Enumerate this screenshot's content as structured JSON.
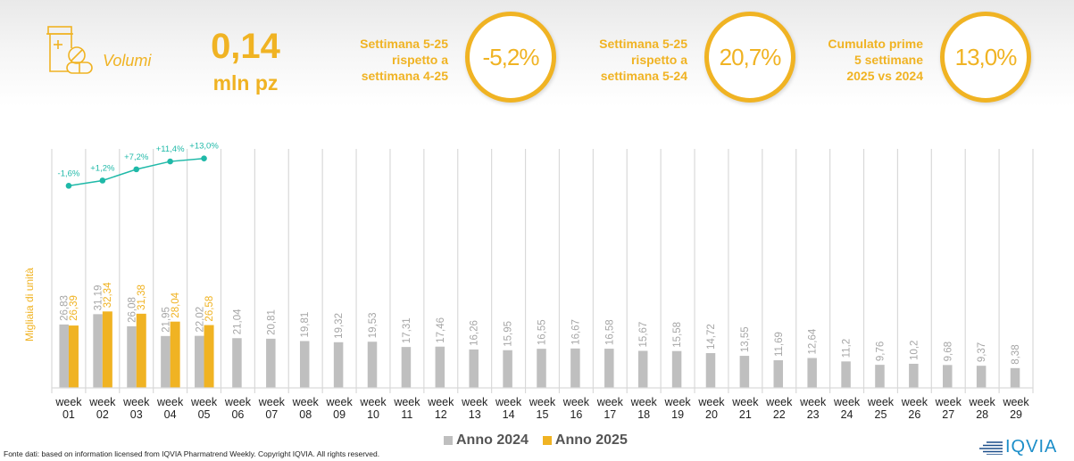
{
  "kpi": {
    "icon": "pill-bottle-icon",
    "label": "Volumi",
    "value": "0,14",
    "unit": "mln pz"
  },
  "comparisons": [
    {
      "text_lines": [
        "Settimana 5-25",
        "rispetto a",
        "settimana 4-25"
      ],
      "value": "-5,2%"
    },
    {
      "text_lines": [
        "Settimana 5-25",
        "rispetto a",
        "settimana 5-24"
      ],
      "value": "20,7%"
    },
    {
      "text_lines": [
        "Cumulato prime",
        "5 settimane",
        "2025 vs 2024"
      ],
      "value": "13,0%"
    }
  ],
  "colors": {
    "accent": "#f0b323",
    "series_2024": "#bfbfbf",
    "series_2025": "#f0b323",
    "growth_line": "#1fb9a8",
    "grid": "#d9d9d9",
    "label_2024": "#a6a6a6"
  },
  "chart_data": {
    "type": "bar",
    "title": "",
    "xlabel": "",
    "ylabel": "Migliaia di unità",
    "categories": [
      "week 01",
      "week 02",
      "week 03",
      "week 04",
      "week 05",
      "week 06",
      "week 07",
      "week 08",
      "week 09",
      "week 10",
      "week 11",
      "week 12",
      "week 13",
      "week 14",
      "week 15",
      "week 16",
      "week 17",
      "week 18",
      "week 19",
      "week 20",
      "week 21",
      "week 22",
      "week 23",
      "week 24",
      "week 25",
      "week 26",
      "week 27",
      "week 28",
      "week 29"
    ],
    "category_lines": [
      [
        "week",
        "01"
      ],
      [
        "week",
        "02"
      ],
      [
        "week",
        "03"
      ],
      [
        "week",
        "04"
      ],
      [
        "week",
        "05"
      ],
      [
        "week",
        "06"
      ],
      [
        "week",
        "07"
      ],
      [
        "week",
        "08"
      ],
      [
        "week",
        "09"
      ],
      [
        "week",
        "10"
      ],
      [
        "week",
        "11"
      ],
      [
        "week",
        "12"
      ],
      [
        "week",
        "13"
      ],
      [
        "week",
        "14"
      ],
      [
        "week",
        "15"
      ],
      [
        "week",
        "16"
      ],
      [
        "week",
        "17"
      ],
      [
        "week",
        "18"
      ],
      [
        "week",
        "19"
      ],
      [
        "week",
        "20"
      ],
      [
        "week",
        "21"
      ],
      [
        "week",
        "22"
      ],
      [
        "week",
        "23"
      ],
      [
        "week",
        "24"
      ],
      [
        "week",
        "25"
      ],
      [
        "week",
        "26"
      ],
      [
        "week",
        "27"
      ],
      [
        "week",
        "28"
      ],
      [
        "week",
        "29"
      ]
    ],
    "series": [
      {
        "name": "Anno 2024",
        "values": [
          26.83,
          31.19,
          26.08,
          21.95,
          22.02,
          21.04,
          20.81,
          19.81,
          19.32,
          19.53,
          17.31,
          17.46,
          16.26,
          15.95,
          16.55,
          16.67,
          16.58,
          15.67,
          15.58,
          14.72,
          13.55,
          11.69,
          12.64,
          11.2,
          9.76,
          10.2,
          9.68,
          9.37,
          8.38
        ],
        "labels": [
          "26,83",
          "31,19",
          "26,08",
          "21,95",
          "22,02",
          "21,04",
          "20,81",
          "19,81",
          "19,32",
          "19,53",
          "17,31",
          "17,46",
          "16,26",
          "15,95",
          "16,55",
          "16,67",
          "16,58",
          "15,67",
          "15,58",
          "14,72",
          "13,55",
          "11,69",
          "12,64",
          "11,2",
          "9,76",
          "10,2",
          "9,68",
          "9,37",
          "8,38"
        ]
      },
      {
        "name": "Anno 2025",
        "values": [
          26.39,
          32.34,
          31.38,
          28.04,
          26.58
        ],
        "labels": [
          "26,39",
          "32,34",
          "31,38",
          "28,04",
          "26,58"
        ]
      }
    ],
    "cumulative_growth": {
      "name": "Cumulative growth 2025 vs 2024",
      "values": [
        -1.6,
        1.2,
        7.2,
        11.4,
        13.0
      ],
      "labels": [
        "-1,6%",
        "+1,2%",
        "+7,2%",
        "+11,4%",
        "+13,0%"
      ]
    },
    "ylim": [
      0,
      60
    ],
    "grid": "vertical category separators",
    "legend": "bottom-center"
  },
  "legend": {
    "items": [
      {
        "label": "Anno 2024",
        "color": "#bfbfbf"
      },
      {
        "label": "Anno 2025",
        "color": "#f0b323"
      }
    ]
  },
  "footer": {
    "source": "Fonte dati: based on information licensed from IQVIA Pharmatrend Weekly. Copyright IQVIA. All rights reserved.",
    "logo_text": "IQVIA"
  }
}
